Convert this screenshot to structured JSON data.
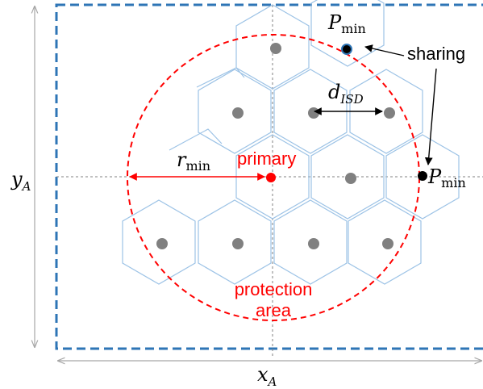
{
  "labels": {
    "p_min_top_main": "P",
    "p_min_top_sub": "min",
    "sharing": "sharing",
    "d_isd_main": "d",
    "d_isd_sub": "ISD",
    "r_min_main": "r",
    "r_min_sub": "min",
    "primary": "primary",
    "p_min_right_main": "P",
    "p_min_right_sub": "min",
    "y_axis_main": "y",
    "y_axis_sub": "A",
    "x_axis_main": "x",
    "x_axis_sub": "A",
    "protection_line1": "protection",
    "protection_line2": "area"
  },
  "colors": {
    "hexagon_stroke": "#9dc3e6",
    "base_station": "#808080",
    "primary_dot": "#ff0000",
    "protection_circle": "#ff0000",
    "boundary": "#2e75b6",
    "crosshair": "#808080",
    "arrow": "#000000",
    "dimension_arrow": "#a6a6a6",
    "sharing_node": "#000000",
    "sharing_node_ring": "#2e75b6"
  }
}
